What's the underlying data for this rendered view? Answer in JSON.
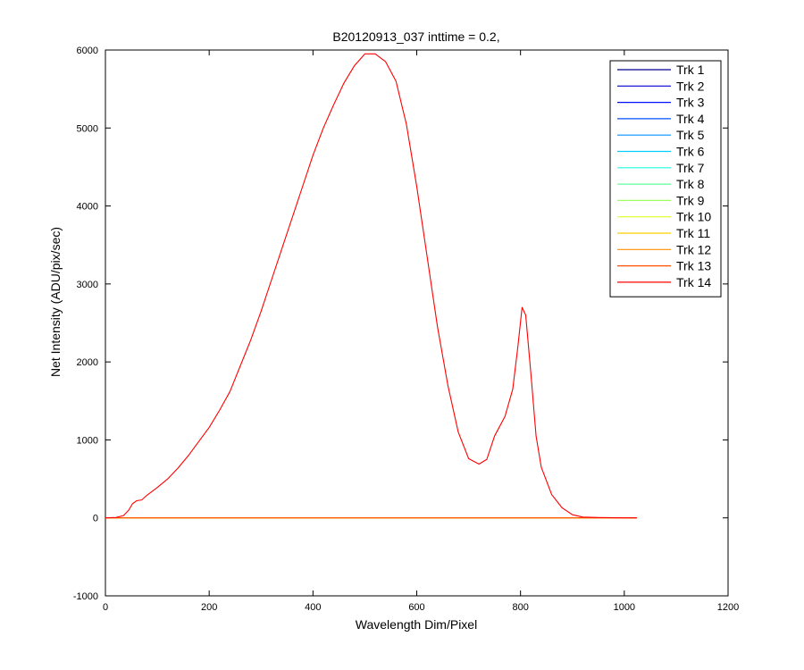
{
  "chart_data": {
    "type": "line",
    "title": "B20120913_037 inttime = 0.2,",
    "xlabel": "Wavelength Dim/Pixel",
    "ylabel": "Net Intensity (ADU/pix/sec)",
    "xlim": [
      0,
      1200
    ],
    "ylim": [
      -1000,
      6000
    ],
    "xticks": [
      0,
      200,
      400,
      600,
      800,
      1000,
      1200
    ],
    "yticks": [
      -1000,
      0,
      1000,
      2000,
      3000,
      4000,
      5000,
      6000
    ],
    "grid": false,
    "legend_position": "top-right",
    "series": [
      {
        "name": "Trk 1",
        "color": "#00008f",
        "x": [
          0,
          1024
        ],
        "y": [
          0,
          0
        ]
      },
      {
        "name": "Trk 2",
        "color": "#0000cf",
        "x": [
          0,
          1024
        ],
        "y": [
          0,
          0
        ]
      },
      {
        "name": "Trk 3",
        "color": "#0010ff",
        "x": [
          0,
          1024
        ],
        "y": [
          0,
          0
        ]
      },
      {
        "name": "Trk 4",
        "color": "#0050ff",
        "x": [
          0,
          1024
        ],
        "y": [
          0,
          0
        ]
      },
      {
        "name": "Trk 5",
        "color": "#0090ff",
        "x": [
          0,
          1024
        ],
        "y": [
          0,
          0
        ]
      },
      {
        "name": "Trk 6",
        "color": "#00d0ff",
        "x": [
          0,
          1024
        ],
        "y": [
          0,
          0
        ]
      },
      {
        "name": "Trk 7",
        "color": "#20ffdf",
        "x": [
          0,
          1024
        ],
        "y": [
          0,
          0
        ]
      },
      {
        "name": "Trk 8",
        "color": "#60ff9f",
        "x": [
          0,
          1024
        ],
        "y": [
          0,
          0
        ]
      },
      {
        "name": "Trk 9",
        "color": "#a0ff60",
        "x": [
          0,
          1024
        ],
        "y": [
          0,
          0
        ]
      },
      {
        "name": "Trk 10",
        "color": "#dfff20",
        "x": [
          0,
          1024
        ],
        "y": [
          0,
          0
        ]
      },
      {
        "name": "Trk 11",
        "color": "#ffcf00",
        "x": [
          0,
          1024
        ],
        "y": [
          0,
          0
        ]
      },
      {
        "name": "Trk 12",
        "color": "#ff8f00",
        "x": [
          0,
          1024
        ],
        "y": [
          0,
          0
        ]
      },
      {
        "name": "Trk 13",
        "color": "#ff5000",
        "x": [
          0,
          1024
        ],
        "y": [
          0,
          0
        ]
      },
      {
        "name": "Trk 14",
        "color": "#ff0000",
        "x": [
          0,
          20,
          35,
          45,
          52,
          60,
          70,
          80,
          100,
          120,
          140,
          160,
          180,
          200,
          220,
          240,
          260,
          280,
          300,
          320,
          340,
          360,
          380,
          400,
          420,
          440,
          460,
          480,
          500,
          520,
          540,
          560,
          580,
          600,
          620,
          640,
          660,
          680,
          700,
          720,
          735,
          750,
          770,
          785,
          795,
          803,
          810,
          820,
          830,
          840,
          860,
          880,
          900,
          920,
          950,
          1000,
          1024
        ],
        "y": [
          0,
          5,
          30,
          100,
          180,
          220,
          230,
          290,
          390,
          500,
          640,
          800,
          980,
          1160,
          1380,
          1620,
          1950,
          2280,
          2650,
          3050,
          3450,
          3850,
          4250,
          4650,
          5000,
          5300,
          5580,
          5800,
          5950,
          5950,
          5850,
          5600,
          5050,
          4250,
          3350,
          2450,
          1700,
          1100,
          760,
          690,
          750,
          1050,
          1300,
          1650,
          2200,
          2700,
          2600,
          1850,
          1050,
          650,
          300,
          130,
          40,
          10,
          5,
          0,
          0
        ]
      }
    ]
  }
}
